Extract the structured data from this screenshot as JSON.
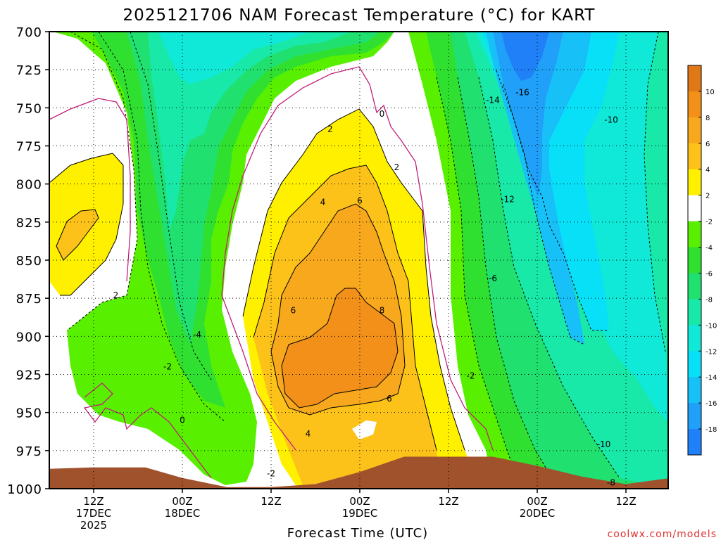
{
  "chart_data": {
    "type": "heatmap",
    "title": "2025121706 NAM Forecast Temperature (°C) for KART",
    "xlabel": "Forecast Time (UTC)",
    "ylabel": "",
    "credit": "coolwx.com/models",
    "y_axis": {
      "ticks": [
        "700",
        "725",
        "750",
        "775",
        "800",
        "825",
        "850",
        "875",
        "900",
        "925",
        "950",
        "975",
        "1000"
      ],
      "ylim": [
        1000,
        700
      ],
      "units": "hPa"
    },
    "x_axis": {
      "ticks": [
        {
          "line1": "12Z",
          "line2": "17DEC",
          "line3": "2025"
        },
        {
          "line1": "00Z",
          "line2": "18DEC",
          "line3": ""
        },
        {
          "line1": "12Z",
          "line2": "",
          "line3": ""
        },
        {
          "line1": "00Z",
          "line2": "19DEC",
          "line3": ""
        },
        {
          "line1": "12Z",
          "line2": "",
          "line3": ""
        },
        {
          "line1": "00Z",
          "line2": "20DEC",
          "line3": ""
        },
        {
          "line1": "12Z",
          "line2": "",
          "line3": ""
        }
      ],
      "forecast_hours": [
        6,
        18,
        30,
        42,
        54,
        66,
        78
      ]
    },
    "grid": true,
    "colorbar": {
      "labels": [
        "10",
        "8",
        "6",
        "4",
        "2",
        "-2",
        "-4",
        "-6",
        "-8",
        "-10",
        "-12",
        "-14",
        "-16",
        "-18"
      ],
      "bins": [
        {
          "from": 10,
          "to": 12,
          "color": "#e07818"
        },
        {
          "from": 8,
          "to": 10,
          "color": "#f2901a"
        },
        {
          "from": 6,
          "to": 8,
          "color": "#f8a81c"
        },
        {
          "from": 4,
          "to": 6,
          "color": "#fcc21a"
        },
        {
          "from": 2,
          "to": 4,
          "color": "#fff000"
        },
        {
          "from": -2,
          "to": 2,
          "color": "#ffffff"
        },
        {
          "from": -4,
          "to": -2,
          "color": "#58f000"
        },
        {
          "from": -6,
          "to": -4,
          "color": "#30e030"
        },
        {
          "from": -8,
          "to": -6,
          "color": "#20e070"
        },
        {
          "from": -10,
          "to": -8,
          "color": "#18e8a8"
        },
        {
          "from": -12,
          "to": -10,
          "color": "#10e8d8"
        },
        {
          "from": -14,
          "to": -12,
          "color": "#08e0f8"
        },
        {
          "from": -16,
          "to": -14,
          "color": "#18c0f8"
        },
        {
          "from": -18,
          "to": -16,
          "color": "#20a0f8"
        },
        {
          "from": -20,
          "to": -18,
          "color": "#2080f8"
        }
      ]
    },
    "contour_labels": [
      {
        "text": "2",
        "hour": 9,
        "p": 873
      },
      {
        "text": "-2",
        "hour": 16,
        "p": 920
      },
      {
        "text": "-4",
        "hour": 20,
        "p": 899
      },
      {
        "text": "0",
        "hour": 18,
        "p": 955
      },
      {
        "text": "-2",
        "hour": 30,
        "p": 990
      },
      {
        "text": "4",
        "hour": 35,
        "p": 964
      },
      {
        "text": "6",
        "hour": 33,
        "p": 883
      },
      {
        "text": "4",
        "hour": 37,
        "p": 812
      },
      {
        "text": "6",
        "hour": 42,
        "p": 811
      },
      {
        "text": "2",
        "hour": 38,
        "p": 764
      },
      {
        "text": "0",
        "hour": 45,
        "p": 754
      },
      {
        "text": "2",
        "hour": 47,
        "p": 789
      },
      {
        "text": "8",
        "hour": 45,
        "p": 883
      },
      {
        "text": "6",
        "hour": 46,
        "p": 941
      },
      {
        "text": "-2",
        "hour": 57,
        "p": 926
      },
      {
        "text": "-6",
        "hour": 60,
        "p": 862
      },
      {
        "text": "-12",
        "hour": 62,
        "p": 810
      },
      {
        "text": "-14",
        "hour": 60,
        "p": 745
      },
      {
        "text": "-16",
        "hour": 64,
        "p": 740
      },
      {
        "text": "-10",
        "hour": 76,
        "p": 758
      },
      {
        "text": "-10",
        "hour": 75,
        "p": 971
      },
      {
        "text": "-8",
        "hour": 76,
        "p": 996
      }
    ],
    "surface_pressure": [
      {
        "hour": 0,
        "p": 987
      },
      {
        "hour": 6,
        "p": 986
      },
      {
        "hour": 13,
        "p": 986
      },
      {
        "hour": 18,
        "p": 993
      },
      {
        "hour": 24,
        "p": 999
      },
      {
        "hour": 30,
        "p": 999
      },
      {
        "hour": 36,
        "p": 997
      },
      {
        "hour": 42,
        "p": 989
      },
      {
        "hour": 48,
        "p": 979
      },
      {
        "hour": 54,
        "p": 979
      },
      {
        "hour": 60,
        "p": 979
      },
      {
        "hour": 66,
        "p": 985
      },
      {
        "hour": 72,
        "p": 992
      },
      {
        "hour": 78,
        "p": 997
      },
      {
        "hour": 84,
        "p": 993
      }
    ]
  }
}
